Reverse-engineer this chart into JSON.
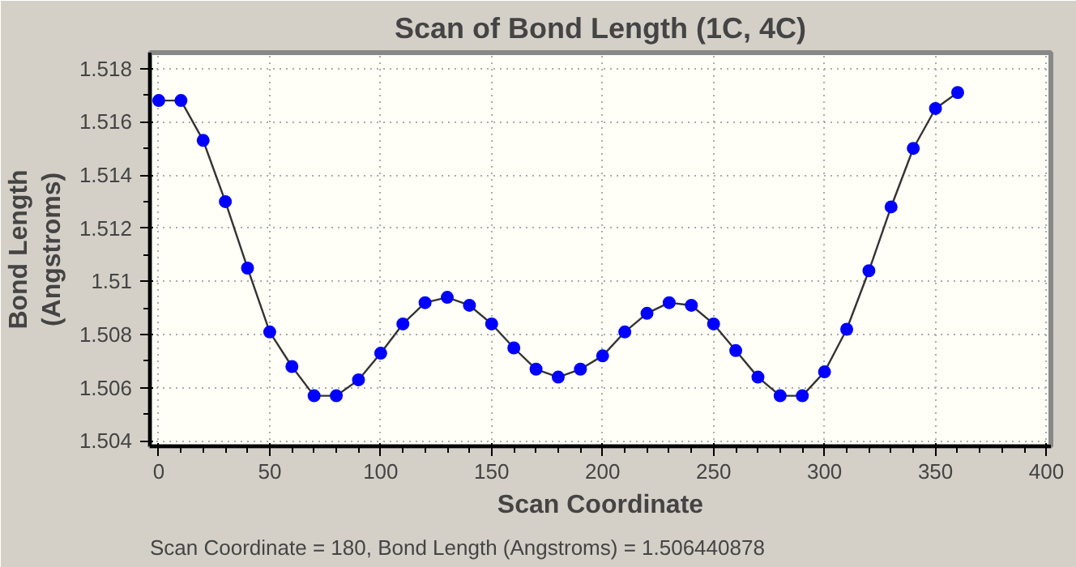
{
  "chart_data": {
    "type": "line",
    "title": "Scan of Bond Length (1C, 4C)",
    "xlabel": "Scan Coordinate",
    "ylabel": "Bond Length\n(Angstroms)",
    "x": [
      0,
      10,
      20,
      30,
      40,
      50,
      60,
      70,
      80,
      90,
      100,
      110,
      120,
      130,
      140,
      150,
      160,
      170,
      180,
      190,
      200,
      210,
      220,
      230,
      240,
      250,
      260,
      270,
      280,
      290,
      300,
      310,
      320,
      330,
      340,
      350,
      360
    ],
    "series": [
      {
        "color": "#0000ff",
        "values": [
          1.5168,
          1.5168,
          1.5153,
          1.513,
          1.5105,
          1.5081,
          1.5068,
          1.5057,
          1.5057,
          1.5063,
          1.5073,
          1.5084,
          1.5092,
          1.5094,
          1.5091,
          1.5084,
          1.5075,
          1.5067,
          1.5064,
          1.5067,
          1.5072,
          1.5081,
          1.5088,
          1.5092,
          1.5091,
          1.5084,
          1.5074,
          1.5064,
          1.5057,
          1.5057,
          1.5066,
          1.5082,
          1.5104,
          1.5128,
          1.515,
          1.5165,
          1.5171
        ]
      }
    ],
    "xlim": [
      -4,
      402
    ],
    "ylim": [
      1.5038,
      1.5186
    ],
    "xticks": [
      0,
      50,
      100,
      150,
      200,
      250,
      300,
      350,
      400
    ],
    "yticks": [
      1.504,
      1.506,
      1.508,
      {
        "value": 1.51,
        "label": "1.51"
      },
      1.512,
      1.514,
      1.516,
      1.518
    ],
    "grid": true,
    "marker": "circle",
    "line_style": "solid",
    "annotations": [
      "Scan Coordinate = 180, Bond Length (Angstroms) = 1.506440878"
    ]
  }
}
